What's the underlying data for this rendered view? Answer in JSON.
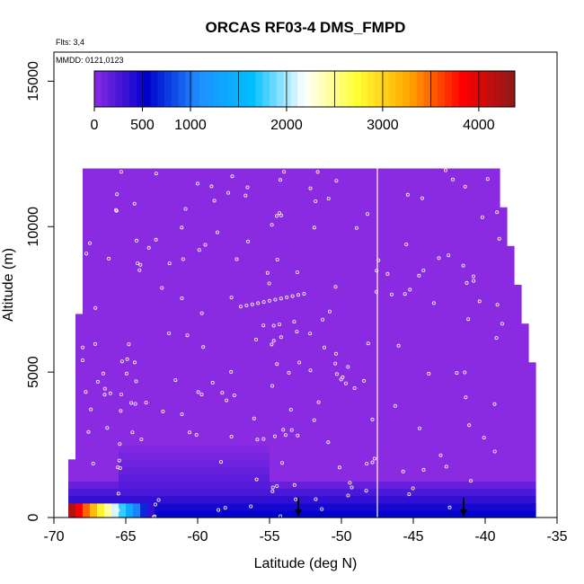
{
  "chart_data": {
    "type": "heatmap",
    "title": "ORCAS RF03-4 DMS_FMPD",
    "xlabel": "Latitude (deg N)",
    "ylabel": "Altitude (m)",
    "flights_note": "Flts: 3,4",
    "date_note": "MMDD: 0121,0123",
    "xlim": [
      -70,
      -35
    ],
    "ylim": [
      0,
      16000
    ],
    "x_ticks": [
      -70,
      -65,
      -60,
      -55,
      -50,
      -45,
      -40,
      -35
    ],
    "x_tick_labels": [
      "-70",
      "-65",
      "-60",
      "-55",
      "-50",
      "-45",
      "-40",
      "-35"
    ],
    "y_ticks": [
      0,
      5000,
      10000,
      15000
    ],
    "y_tick_labels": [
      "0",
      "5000",
      "10000",
      "15000"
    ],
    "colorbar": {
      "range": [
        0,
        4375
      ],
      "ticks": [
        0,
        500,
        1000,
        2000,
        3000,
        4000
      ],
      "tick_labels": [
        "0",
        "500",
        "1000",
        "2000",
        "3000",
        "4000"
      ],
      "colors": [
        "#8a2be2",
        "#0000cd",
        "#1e90ff",
        "#00bfff",
        "#ffffff",
        "#ffff33",
        "#ffa500",
        "#ff0000",
        "#8b1a1a"
      ]
    },
    "domain_boundary": {
      "bottom_left_lat": -69,
      "top_left_lat": -68,
      "top_right_lat": -38,
      "right_bottom_lat": -36.5,
      "top_alt": 12000
    },
    "gap_lat": -47.5,
    "background_value": 0,
    "high_value_band": {
      "lat_range": [
        -69,
        -63
      ],
      "alt_range": [
        0,
        300
      ],
      "peak_value": 4200
    },
    "markers": [
      {
        "lat": -53,
        "alt": 0
      },
      {
        "lat": -41.5,
        "alt": 0
      }
    ]
  }
}
